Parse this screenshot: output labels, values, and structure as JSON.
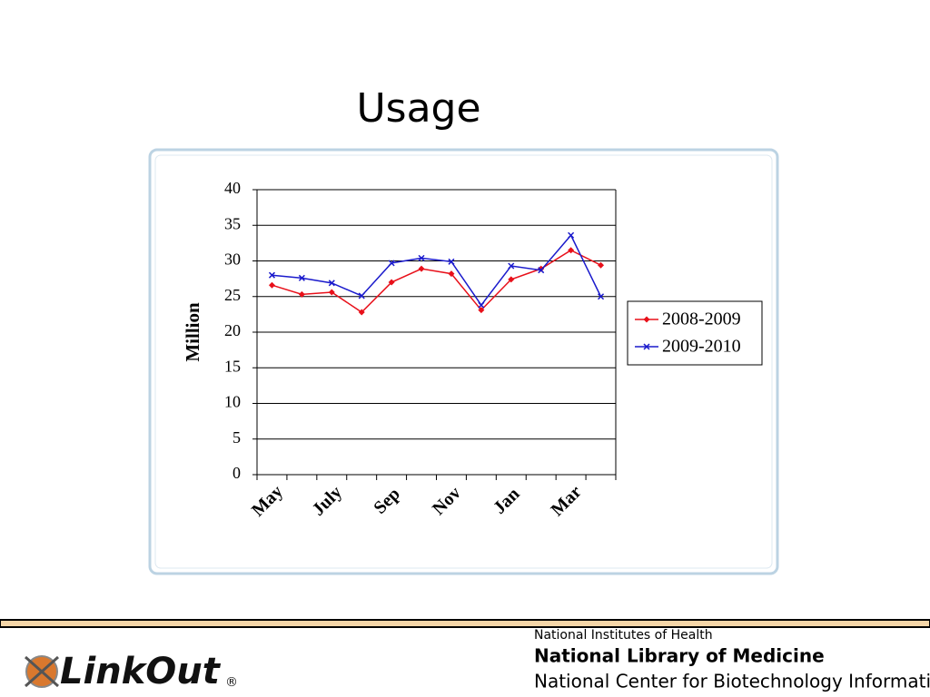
{
  "slide": {
    "title": "Usage",
    "logo": {
      "text": "LinkOut",
      "mark": "®"
    },
    "footer": {
      "line1": "National Institutes of Health",
      "line2": "National Library of Medicine",
      "line3": "National Center for Biotechnology Information"
    }
  },
  "chart_data": {
    "type": "line",
    "y_label": "Million",
    "categories": [
      "May",
      null,
      "July",
      null,
      "Sep",
      null,
      "Nov",
      null,
      "Jan",
      null,
      "Mar",
      null
    ],
    "series": [
      {
        "name": "2008-2009",
        "color": "#e8101a",
        "marker": "diamond",
        "values": [
          26.6,
          25.3,
          25.6,
          22.8,
          27.0,
          28.9,
          28.2,
          23.1,
          27.4,
          28.9,
          31.5,
          29.4
        ]
      },
      {
        "name": "2009-2010",
        "color": "#1a1acc",
        "marker": "x",
        "values": [
          28.0,
          27.6,
          26.9,
          25.1,
          29.7,
          30.4,
          29.9,
          23.8,
          29.3,
          28.7,
          33.6,
          25.0
        ]
      }
    ],
    "ylim": [
      0,
      40
    ],
    "yticks": [
      0,
      5,
      10,
      15,
      20,
      25,
      30,
      35,
      40
    ],
    "grid": true,
    "legend": "right"
  }
}
